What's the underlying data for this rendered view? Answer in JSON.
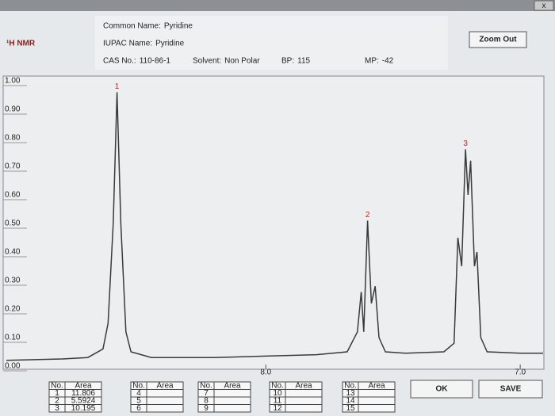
{
  "window": {
    "close": "x"
  },
  "header": {
    "title": "¹H NMR",
    "fields": [
      {
        "label": "Common Name:",
        "value": "Pyridine"
      },
      {
        "label": "IUPAC Name:",
        "value": "Pyridine"
      },
      {
        "label": "CAS No.:",
        "value": "110-86-1"
      },
      {
        "label": "Solvent:",
        "value": "Non Polar"
      },
      {
        "label": "BP:",
        "value": "115"
      },
      {
        "label": "MP:",
        "value": "-42"
      }
    ],
    "zoom": "Zoom Out"
  },
  "chart_data": {
    "type": "line",
    "color": "#3a3a3a",
    "grid": false,
    "xlim": [
      9.02,
      6.91
    ],
    "xticks": [
      {
        "value": 8,
        "label": "8.0"
      },
      {
        "value": 7,
        "label": "7.0"
      }
    ],
    "ylim": [
      0,
      1
    ],
    "yticks": [
      {
        "value": 1,
        "label": "1.00"
      },
      {
        "value": 0.9,
        "label": "0.90"
      },
      {
        "value": 0.8,
        "label": "0.80"
      },
      {
        "value": 0.7,
        "label": "0.70"
      },
      {
        "value": 0.6,
        "label": "0.60"
      },
      {
        "value": 0.5,
        "label": "0.50"
      },
      {
        "value": 0.4,
        "label": "0.40"
      },
      {
        "value": 0.3,
        "label": "0.30"
      },
      {
        "value": 0.2,
        "label": "0.20"
      },
      {
        "value": 0.1,
        "label": "0.10"
      },
      {
        "value": 0,
        "label": "0.00"
      }
    ],
    "x": [
      9.02,
      8.8,
      8.7,
      8.64,
      8.62,
      8.6,
      8.585,
      8.57,
      8.55,
      8.53,
      8.45,
      8.2,
      8.0,
      7.8,
      7.68,
      7.64,
      7.625,
      7.615,
      7.6,
      7.585,
      7.57,
      7.555,
      7.53,
      7.45,
      7.3,
      7.26,
      7.245,
      7.23,
      7.215,
      7.205,
      7.195,
      7.18,
      7.17,
      7.155,
      7.13,
      7.0,
      6.91
    ],
    "values": [
      0.02,
      0.025,
      0.03,
      0.06,
      0.15,
      0.5,
      0.96,
      0.5,
      0.12,
      0.05,
      0.03,
      0.03,
      0.035,
      0.04,
      0.05,
      0.12,
      0.26,
      0.12,
      0.51,
      0.22,
      0.28,
      0.1,
      0.05,
      0.045,
      0.05,
      0.08,
      0.45,
      0.35,
      0.76,
      0.6,
      0.72,
      0.35,
      0.4,
      0.1,
      0.05,
      0.045,
      0.045
    ],
    "annotations": [
      {
        "text": "1",
        "x": 8.585,
        "y": 0.98
      },
      {
        "text": "2",
        "x": 7.6,
        "y": 0.53
      },
      {
        "text": "3",
        "x": 7.215,
        "y": 0.78
      }
    ]
  },
  "tables": [
    {
      "header": [
        "No.",
        "Area"
      ],
      "rows": [
        [
          "1",
          "11.806"
        ],
        [
          "2",
          "5.5924"
        ],
        [
          "3",
          "10.195"
        ]
      ]
    },
    {
      "header": [
        "No.",
        "Area"
      ],
      "rows": [
        [
          "4"
        ],
        [
          "5"
        ],
        [
          "6"
        ]
      ]
    },
    {
      "header": [
        "No.",
        "Area"
      ],
      "rows": [
        [
          "7"
        ],
        [
          "8"
        ],
        [
          "9"
        ]
      ]
    },
    {
      "header": [
        "No.",
        "Area"
      ],
      "rows": [
        [
          "10"
        ],
        [
          "11"
        ],
        [
          "12"
        ]
      ]
    },
    {
      "header": [
        "No.",
        "Area"
      ],
      "rows": [
        [
          "13"
        ],
        [
          "14"
        ],
        [
          "15"
        ]
      ]
    }
  ],
  "buttons": {
    "ok": "OK",
    "save": "SAVE"
  }
}
